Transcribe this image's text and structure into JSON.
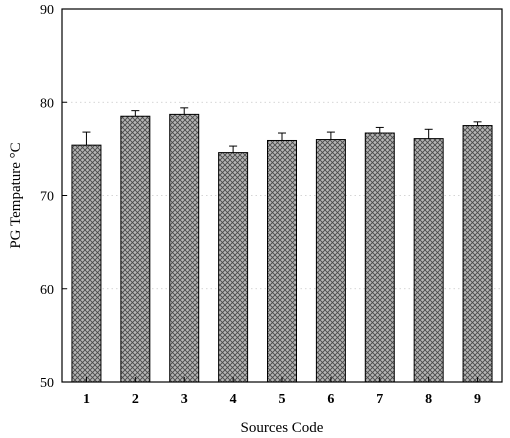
{
  "chart_data": {
    "type": "bar",
    "title": "",
    "xlabel": "Sources Code",
    "ylabel": "PG Tempature  °C",
    "categories": [
      "1",
      "2",
      "3",
      "4",
      "5",
      "6",
      "7",
      "8",
      "9"
    ],
    "values": [
      75.4,
      78.5,
      78.7,
      74.6,
      75.9,
      76.0,
      76.7,
      76.1,
      77.5
    ],
    "errors": [
      1.4,
      0.6,
      0.7,
      0.7,
      0.8,
      0.8,
      0.6,
      1.0,
      0.4
    ],
    "ylim": [
      50,
      90
    ],
    "yticks": [
      50,
      60,
      70,
      80,
      90
    ],
    "grid": "horizontal-dotted",
    "legend": "none",
    "colors": {
      "bar_fill": "#b5b5b5",
      "bar_hatch": "#4a4a4a",
      "axis": "#000000",
      "grid": "#c8c8c8"
    }
  }
}
